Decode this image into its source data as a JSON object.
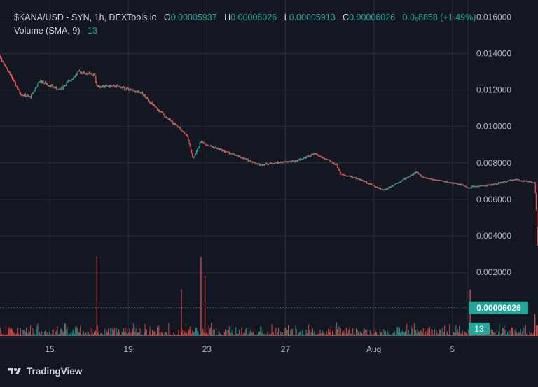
{
  "legend": {
    "symbol": "$KANA/USD - SYN, 1h, DEXTools.io",
    "open_label": "O",
    "open_value": "0.00005937",
    "high_label": "H",
    "high_value": "0.00006026",
    "low_label": "L",
    "low_value": "0.00005913",
    "close_label": "C",
    "close_value": "0.00006026",
    "change": "0.0₆8858 (+1.49%)",
    "volume_label": "Volume (SMA, 9)",
    "volume_value": "13"
  },
  "price_axis_badge": "0.00006026",
  "volume_axis_badge": "13",
  "branding": "TradingView",
  "colors": {
    "up": "#26a69a",
    "down": "#ef5350",
    "background": "#131722",
    "grid": "#2a2e39",
    "text": "#b2b5be"
  },
  "chart_data": {
    "type": "candlestick",
    "y_ticks": [
      "0.016000",
      "0.014000",
      "0.012000",
      "0.010000",
      "0.008000",
      "0.006000",
      "0.004000",
      "0.002000"
    ],
    "ylim": [
      -0.0011,
      0.01655
    ],
    "x_ticks": [
      "15",
      "19",
      "23",
      "27",
      "Aug",
      "5"
    ],
    "price_keyframes": {
      "x": [
        0.6,
        1.3,
        2.5,
        3.0,
        3.5,
        4.5,
        5.5,
        6.3,
        6.4,
        7.5,
        8.7,
        9.4,
        10.5,
        11.0,
        11.3,
        11.7,
        12.0,
        13.5,
        14.7,
        15.5,
        16.5,
        17.5,
        18.6,
        18.8,
        19.5,
        20.0,
        21.0,
        22.7,
        23.0,
        25.0,
        25.3,
        25.5,
        26.5,
        27.7,
        28.7,
        29.0,
        29.5
      ],
      "close": [
        0.0145,
        0.0142,
        0.0118,
        0.0116,
        0.0125,
        0.012,
        0.013,
        0.0128,
        0.0122,
        0.0122,
        0.0118,
        0.011,
        0.01,
        0.0095,
        0.0082,
        0.0092,
        0.009,
        0.0084,
        0.0079,
        0.008,
        0.0081,
        0.0085,
        0.0079,
        0.0074,
        0.0072,
        0.007,
        0.0065,
        0.0075,
        0.0072,
        0.0068,
        0.0066,
        0.0067,
        0.0068,
        0.0071,
        0.0069,
        6.03e-05,
        6.03e-05
      ]
    },
    "volume_spikes": [
      {
        "x": 6.4,
        "v": 29
      },
      {
        "x": 10.7,
        "v": 17
      },
      {
        "x": 11.7,
        "v": 29
      },
      {
        "x": 11.9,
        "v": 22
      },
      {
        "x": 25.4,
        "v": 17
      },
      {
        "x": 28.7,
        "v": 8
      }
    ],
    "last_volume": 13
  }
}
